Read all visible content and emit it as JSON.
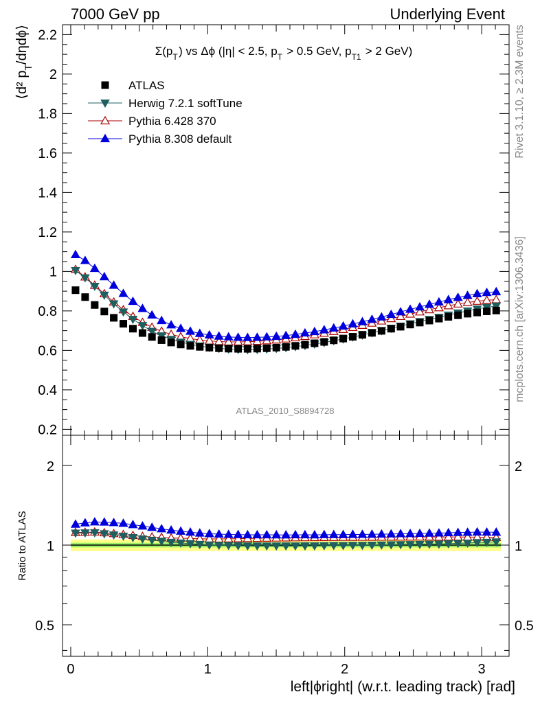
{
  "header": {
    "left": "7000 GeV pp",
    "right": "Underlying Event"
  },
  "side_labels": {
    "rivet": "Rivet 3.1.10, ≥ 2.3M events",
    "mcplots": "mcplots.cern.ch [arXiv:1306.3436]"
  },
  "watermark": "ATLAS_2010_S8894728",
  "chart_data": [
    {
      "type": "scatter",
      "title": "Σ(p_T) vs Δϕ (|η| < 2.5, p_T > 0.5 GeV, p_T1 > 2 GeV)",
      "ylabel": "⟨d² p_T/dηdϕ⟩",
      "xlabel": "",
      "xlim": [
        -0.06,
        3.2
      ],
      "ylim": [
        0.17,
        2.25
      ],
      "y_ticks": [
        "0.2",
        "0.4",
        "0.6",
        "0.8",
        "1",
        "1.2",
        "1.4",
        "1.6",
        "1.8",
        "2",
        "2.2"
      ],
      "x": [
        0.035,
        0.105,
        0.175,
        0.245,
        0.314,
        0.384,
        0.454,
        0.524,
        0.593,
        0.663,
        0.733,
        0.803,
        0.873,
        0.942,
        1.012,
        1.082,
        1.152,
        1.222,
        1.291,
        1.361,
        1.431,
        1.501,
        1.571,
        1.64,
        1.71,
        1.78,
        1.85,
        1.92,
        1.989,
        2.059,
        2.129,
        2.199,
        2.269,
        2.339,
        2.408,
        2.478,
        2.548,
        2.618,
        2.688,
        2.757,
        2.827,
        2.897,
        2.967,
        3.037,
        3.106
      ],
      "legend_position": "top-left",
      "series": [
        {
          "name": "ATLAS",
          "marker": "square",
          "color": "#000000",
          "values": [
            0.905,
            0.87,
            0.83,
            0.797,
            0.765,
            0.735,
            0.71,
            0.688,
            0.668,
            0.652,
            0.64,
            0.63,
            0.623,
            0.618,
            0.614,
            0.611,
            0.609,
            0.608,
            0.608,
            0.609,
            0.611,
            0.614,
            0.618,
            0.623,
            0.629,
            0.636,
            0.643,
            0.651,
            0.66,
            0.669,
            0.679,
            0.689,
            0.699,
            0.71,
            0.72,
            0.731,
            0.741,
            0.751,
            0.761,
            0.77,
            0.778,
            0.786,
            0.792,
            0.798,
            0.802
          ]
        },
        {
          "name": "Herwig 7.2.1 softTune",
          "marker": "triangle-down",
          "color": "#1f5f5f",
          "values": [
            1.005,
            0.968,
            0.925,
            0.88,
            0.836,
            0.795,
            0.758,
            0.726,
            0.697,
            0.674,
            0.656,
            0.642,
            0.631,
            0.622,
            0.615,
            0.61,
            0.607,
            0.605,
            0.604,
            0.605,
            0.607,
            0.61,
            0.614,
            0.619,
            0.625,
            0.632,
            0.64,
            0.649,
            0.658,
            0.668,
            0.678,
            0.689,
            0.7,
            0.712,
            0.723,
            0.735,
            0.746,
            0.757,
            0.768,
            0.779,
            0.79,
            0.8,
            0.81,
            0.818,
            0.825
          ]
        },
        {
          "name": "Pythia 6.428 370",
          "marker": "triangle-open",
          "color": "#aa0000",
          "values": [
            1.01,
            0.972,
            0.93,
            0.887,
            0.845,
            0.806,
            0.772,
            0.742,
            0.717,
            0.697,
            0.681,
            0.669,
            0.66,
            0.653,
            0.648,
            0.645,
            0.643,
            0.643,
            0.644,
            0.646,
            0.649,
            0.653,
            0.658,
            0.664,
            0.671,
            0.679,
            0.687,
            0.696,
            0.706,
            0.716,
            0.727,
            0.738,
            0.749,
            0.761,
            0.772,
            0.784,
            0.795,
            0.806,
            0.816,
            0.826,
            0.835,
            0.843,
            0.849,
            0.854,
            0.857
          ]
        },
        {
          "name": "Pythia 8.308 default",
          "marker": "triangle-up",
          "color": "#0000dd",
          "values": [
            1.085,
            1.055,
            1.015,
            0.973,
            0.93,
            0.888,
            0.848,
            0.812,
            0.779,
            0.751,
            0.729,
            0.711,
            0.697,
            0.686,
            0.678,
            0.672,
            0.668,
            0.666,
            0.665,
            0.666,
            0.668,
            0.671,
            0.675,
            0.681,
            0.688,
            0.695,
            0.704,
            0.713,
            0.723,
            0.734,
            0.745,
            0.757,
            0.769,
            0.782,
            0.795,
            0.808,
            0.82,
            0.833,
            0.845,
            0.857,
            0.868,
            0.878,
            0.887,
            0.893,
            0.897
          ]
        }
      ]
    },
    {
      "type": "scatter",
      "ylabel": "Ratio to ATLAS",
      "xlabel": "left|ϕright| (w.r.t. leading track) [rad]",
      "y_scale": "log",
      "xlim": [
        -0.06,
        3.2
      ],
      "ylim": [
        0.38,
        2.6
      ],
      "y_ticks": [
        "0.5",
        "1",
        "2"
      ],
      "x_ticks": [
        "0",
        "1",
        "2",
        "3"
      ],
      "band": {
        "inner": [
          0.98,
          1.02
        ],
        "outer": [
          0.95,
          1.05
        ],
        "inner_color": "#99ee66",
        "outer_color": "#ffff88"
      },
      "series_ref": "same x and series as the main panel, divided by ATLAS"
    }
  ]
}
